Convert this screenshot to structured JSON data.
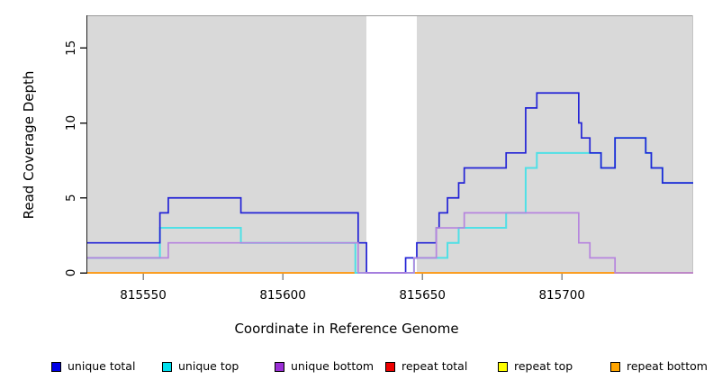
{
  "figure": {
    "x_title": "Coordinate in Reference Genome",
    "y_title": "Read Coverage Depth"
  },
  "legend": {
    "items": [
      {
        "label": "unique total",
        "color": "#0000e6"
      },
      {
        "label": "unique top",
        "color": "#00e0ee"
      },
      {
        "label": "unique bottom",
        "color": "#9b2fd6"
      },
      {
        "label": "repeat total",
        "color": "#ee0000"
      },
      {
        "label": "repeat top",
        "color": "#ffff00"
      },
      {
        "label": "repeat bottom",
        "color": "#ffa500"
      }
    ]
  },
  "chart_data": {
    "type": "line",
    "subtype": "step-coverage",
    "title": "",
    "xlabel": "Coordinate in Reference Genome",
    "ylabel": "Read Coverage Depth",
    "xlim": [
      815530,
      815747
    ],
    "ylim": [
      0,
      17.18
    ],
    "x_ticks": [
      815550,
      815600,
      815650,
      815700
    ],
    "y_ticks": [
      0,
      5,
      10,
      15
    ],
    "grid": false,
    "plot_background": "#d9d9d9",
    "masked_band": {
      "x0": 815630,
      "x1": 815648,
      "color": "#ffffff"
    },
    "x_end": 815747,
    "legend_position": "bottom",
    "series": [
      {
        "name": "repeat total",
        "line_color": "#dd2222",
        "width": 1.6,
        "steps": [
          [
            815530,
            0
          ]
        ]
      },
      {
        "name": "repeat top",
        "line_color": "#ffe600",
        "width": 1.6,
        "steps": [
          [
            815530,
            0
          ]
        ]
      },
      {
        "name": "repeat bottom",
        "line_color": "#ff9d1e",
        "width": 1.8,
        "steps": [
          [
            815530,
            0
          ]
        ]
      },
      {
        "name": "unique top",
        "line_color": "#4fe0e6",
        "width": 2.0,
        "steps": [
          [
            815530,
            1
          ],
          [
            815556,
            3
          ],
          [
            815585,
            2
          ],
          [
            815626,
            0
          ],
          [
            815647,
            1
          ],
          [
            815659,
            2
          ],
          [
            815663,
            3
          ],
          [
            815680,
            4
          ],
          [
            815687,
            7
          ],
          [
            815691,
            8
          ],
          [
            815714,
            7
          ],
          [
            815719,
            9
          ],
          [
            815730,
            8
          ],
          [
            815732,
            7
          ],
          [
            815736,
            6
          ]
        ]
      },
      {
        "name": "unique total",
        "line_color": "#2323d6",
        "width": 1.7,
        "steps": [
          [
            815530,
            2
          ],
          [
            815556,
            4
          ],
          [
            815559,
            5
          ],
          [
            815585,
            4
          ],
          [
            815627,
            2
          ],
          [
            815630,
            0
          ],
          [
            815644,
            1
          ],
          [
            815648,
            2
          ],
          [
            815655,
            3
          ],
          [
            815656,
            4
          ],
          [
            815659,
            5
          ],
          [
            815663,
            6
          ],
          [
            815665,
            7
          ],
          [
            815680,
            8
          ],
          [
            815687,
            11
          ],
          [
            815691,
            12
          ],
          [
            815706,
            10
          ],
          [
            815707,
            9
          ],
          [
            815710,
            8
          ],
          [
            815714,
            7
          ],
          [
            815719,
            9
          ],
          [
            815730,
            8
          ],
          [
            815732,
            7
          ],
          [
            815736,
            6
          ]
        ]
      },
      {
        "name": "unique bottom",
        "line_color": "#b684de",
        "width": 1.7,
        "steps": [
          [
            815530,
            1
          ],
          [
            815559,
            2
          ],
          [
            815627,
            0
          ],
          [
            815647,
            1
          ],
          [
            815655,
            3
          ],
          [
            815665,
            4
          ],
          [
            815706,
            2
          ],
          [
            815710,
            1
          ],
          [
            815719,
            0
          ]
        ]
      }
    ]
  }
}
